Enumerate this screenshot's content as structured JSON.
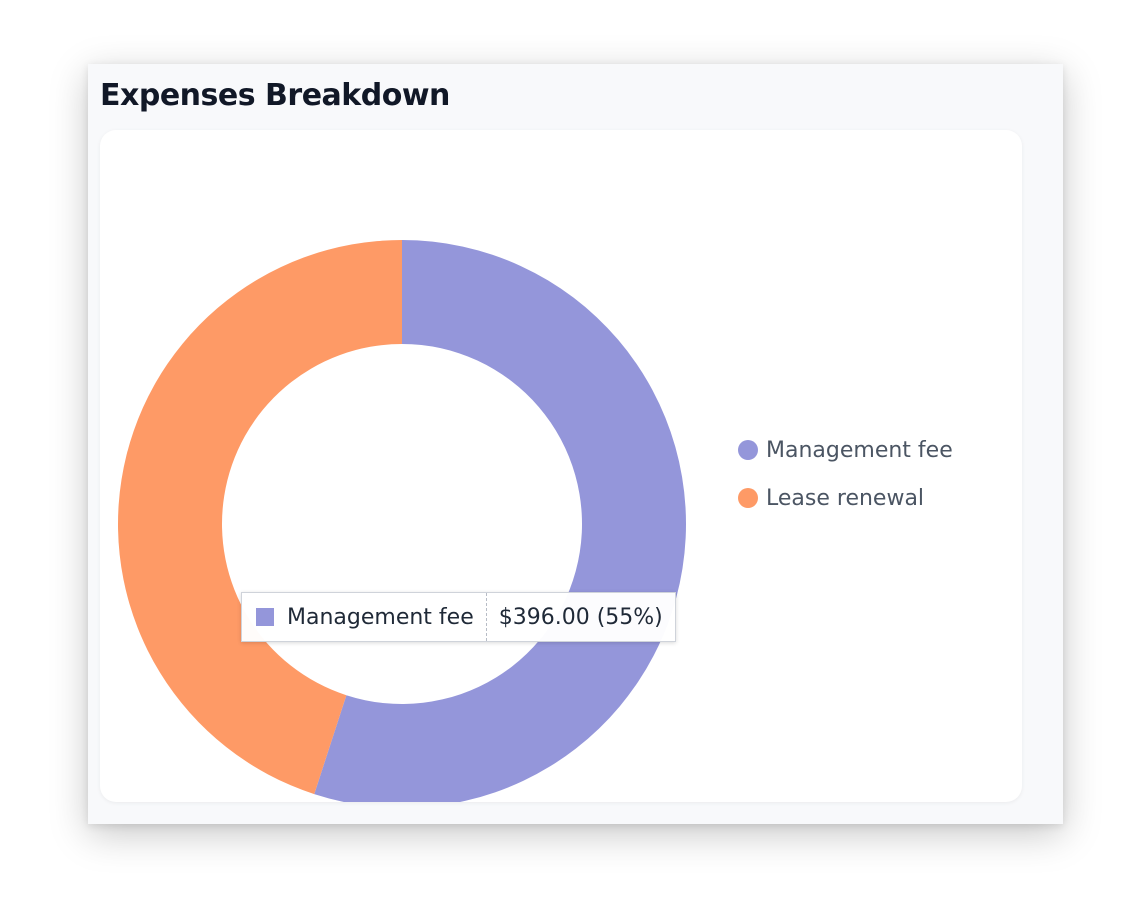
{
  "panel": {
    "title": "Expenses Breakdown"
  },
  "chart_data": {
    "type": "pie",
    "variant": "donut",
    "title": "",
    "categories": [
      "Management fee",
      "Lease renewal"
    ],
    "values": [
      396,
      324
    ],
    "percent": [
      55,
      45
    ],
    "colors": [
      "#9496da",
      "#fe9a66"
    ],
    "legend_position": "right",
    "tooltip": {
      "label": "Management fee",
      "value": "$396.00 (55%)"
    }
  }
}
